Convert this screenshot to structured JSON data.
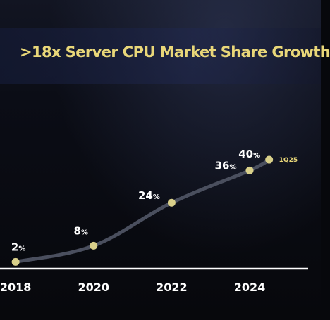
{
  "chart_data": {
    "type": "line",
    "title": ">18x Server CPU Market Share Growth",
    "xlabel": "",
    "ylabel": "",
    "x_ticks": [
      "2018",
      "2020",
      "2022",
      "2024"
    ],
    "xlim": [
      2017.6,
      2025.5
    ],
    "ylim": [
      0,
      68
    ],
    "grid": false,
    "legend": "none",
    "series": [
      {
        "values": [
          {
            "x": 2018.0,
            "y": 2,
            "label": "2%"
          },
          {
            "x": 2020.0,
            "y": 8,
            "label": "8%"
          },
          {
            "x": 2022.0,
            "y": 24,
            "label": "24%"
          },
          {
            "x": 2024.0,
            "y": 36,
            "label": "36%"
          },
          {
            "x": 2024.5,
            "y": 40,
            "label": "40%",
            "annotation": "1Q25"
          }
        ]
      }
    ],
    "colors": {
      "title": "#e9d779",
      "line": "#4a4f5e",
      "marker": "#d9d08a",
      "axis": "#ffffff",
      "text": "#ffffff"
    }
  }
}
